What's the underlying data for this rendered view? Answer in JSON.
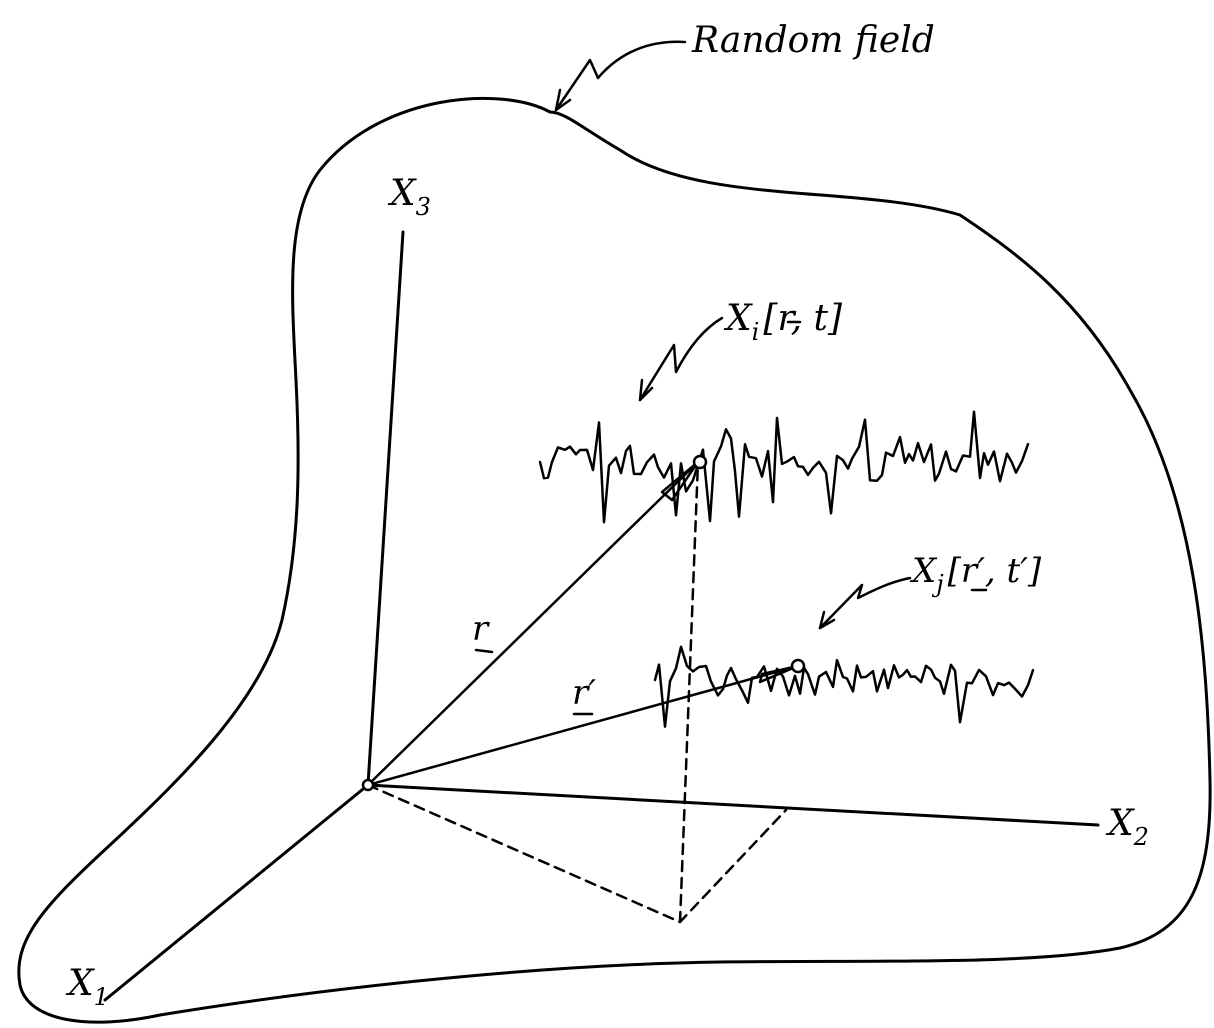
{
  "field_label": "Random field",
  "axes": {
    "x1": {
      "main": "X",
      "sub": "1"
    },
    "x2": {
      "main": "X",
      "sub": "2"
    },
    "x3": {
      "main": "X",
      "sub": "3"
    }
  },
  "vectors": {
    "r": "r",
    "r_prime": "r′"
  },
  "processes": {
    "xi": {
      "main": "X",
      "sub": "i",
      "args": "[r, t]"
    },
    "xj": {
      "main": "X",
      "sub": "j",
      "args": "[r′, t′]"
    }
  }
}
